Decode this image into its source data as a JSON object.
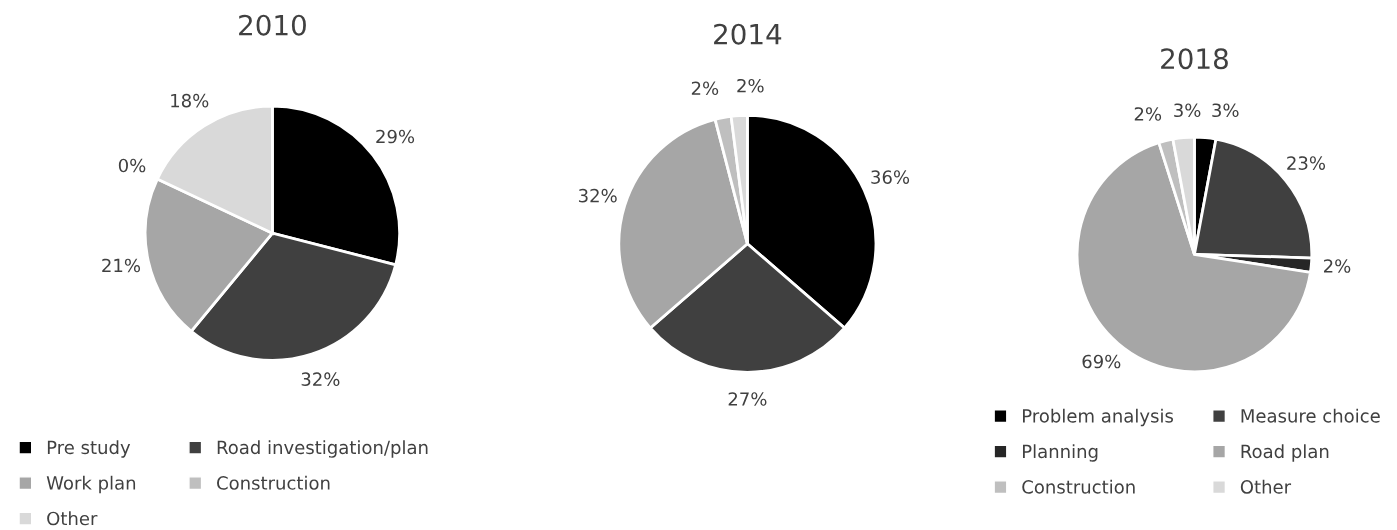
{
  "chart_data": [
    {
      "type": "pie",
      "title": "2010",
      "categories": [
        "Pre study",
        "Road investigation/plan",
        "Work plan",
        "Construction",
        "Other"
      ],
      "values": [
        29,
        32,
        21,
        0,
        18
      ],
      "value_labels": [
        "29%",
        "32%",
        "21%",
        "0%",
        "18%"
      ],
      "colors": [
        "#000000",
        "#404040",
        "#a6a6a6",
        "#bfbfbf",
        "#d9d9d9"
      ],
      "legend": "bottom"
    },
    {
      "type": "pie",
      "title": "2014",
      "categories": [
        null,
        null,
        null,
        null,
        null
      ],
      "values": [
        36,
        27,
        32,
        2,
        2
      ],
      "value_labels": [
        "36%",
        "27%",
        "32%",
        "2%",
        "2%"
      ],
      "colors": [
        "#000000",
        "#404040",
        "#a6a6a6",
        "#bfbfbf",
        "#d9d9d9"
      ],
      "legend": false
    },
    {
      "type": "pie",
      "title": "2018",
      "categories": [
        "Problem analysis",
        "Measure choice",
        "Planning",
        "Road plan",
        "Construction",
        "Other"
      ],
      "values": [
        3,
        23,
        2,
        69,
        2,
        3
      ],
      "value_labels": [
        "3%",
        "23%",
        "2%",
        "69%",
        "2%",
        "3%"
      ],
      "colors": [
        "#000000",
        "#404040",
        "#262626",
        "#a6a6a6",
        "#bfbfbf",
        "#d9d9d9"
      ],
      "legend": "bottom"
    }
  ]
}
